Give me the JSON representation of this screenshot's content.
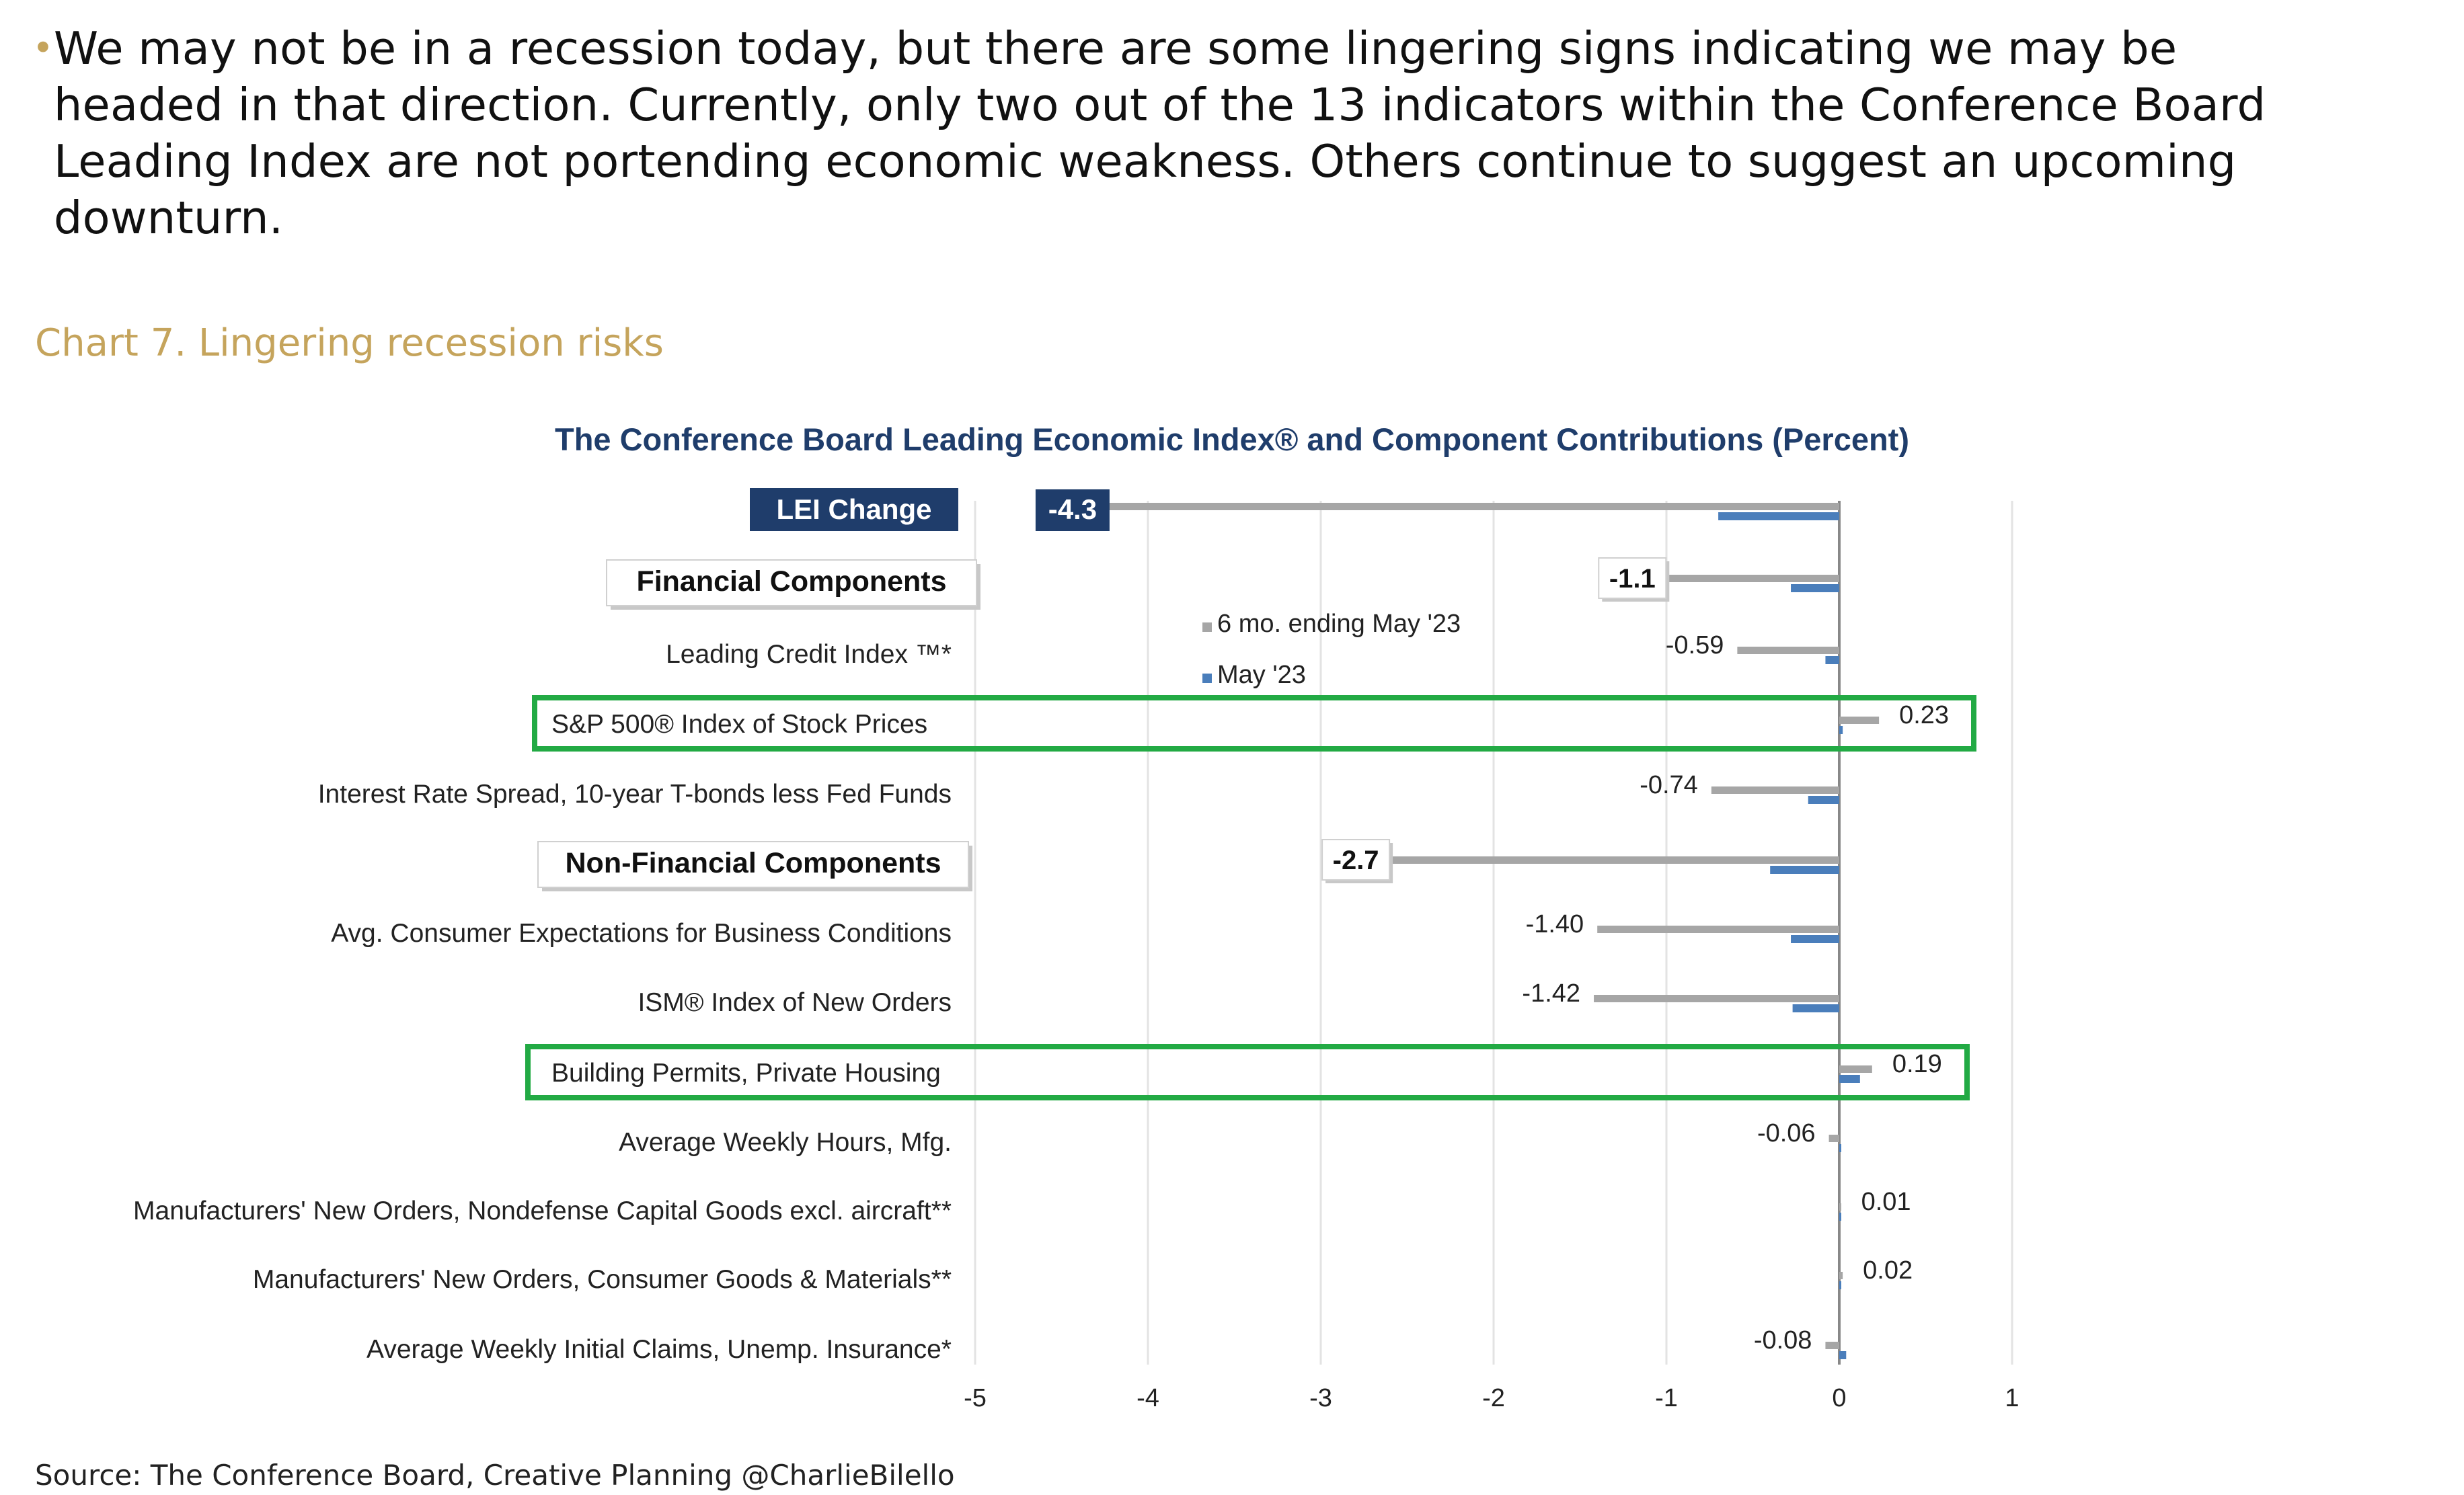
{
  "bullet": {
    "text": "We may not be in a recession today, but there are some lingering signs indicating we may be headed in that direction. Currently, only two out of the 13 indicators within the Conference Board Leading Index are not portending economic weakness. Others continue to suggest an upcoming downturn."
  },
  "caption": "Chart 7. Lingering recession risks",
  "source": "Source: The Conference Board, Creative Planning @CharlieBilello",
  "colors": {
    "six_month": "#a6a6a6",
    "may": "#4a7ebb",
    "title": "#1f3d6b",
    "highlight": "#22aa44",
    "caption": "#c5a45c"
  },
  "chart_data": {
    "type": "bar",
    "orientation": "horizontal",
    "title": "The Conference Board Leading Economic Index® and Component Contributions (Percent)",
    "xlim": [
      -5,
      1
    ],
    "xticks": [
      "-5",
      "-4",
      "-3",
      "-2",
      "-1",
      "0",
      "1"
    ],
    "grid": true,
    "legend": {
      "placement": "center-top",
      "entries": [
        "6 mo. ending May '23",
        "May '23"
      ]
    },
    "series": [
      {
        "name": "6 mo. ending May '23",
        "color": "#a6a6a6"
      },
      {
        "name": "May '23",
        "color": "#4a7ebb"
      }
    ],
    "rows": [
      {
        "label": "LEI Change",
        "kind": "group",
        "six": -4.3,
        "may": -0.7,
        "value_label": "-4.3",
        "label_style": "dark-box",
        "value_style": "dark-box"
      },
      {
        "label": "Financial Components",
        "kind": "group",
        "six": -1.1,
        "may": -0.28,
        "value_label": "-1.1",
        "label_style": "box",
        "value_style": "box"
      },
      {
        "label": "Leading Credit Index ™*",
        "kind": "item",
        "six": -0.59,
        "may": -0.08,
        "value_label": "-0.59"
      },
      {
        "label": "S&P 500® Index of Stock Prices",
        "kind": "item",
        "six": 0.23,
        "may": 0.02,
        "value_label": "0.23",
        "highlight": true
      },
      {
        "label": "Interest Rate Spread, 10-year T-bonds less Fed Funds",
        "kind": "item",
        "six": -0.74,
        "may": -0.18,
        "value_label": "-0.74"
      },
      {
        "label": "Non-Financial Components",
        "kind": "group",
        "six": -2.7,
        "may": -0.4,
        "value_label": "-2.7",
        "label_style": "box",
        "value_style": "box"
      },
      {
        "label": "Avg. Consumer Expectations for Business Conditions",
        "kind": "item",
        "six": -1.4,
        "may": -0.28,
        "value_label": "-1.40"
      },
      {
        "label": "ISM® Index of New Orders",
        "kind": "item",
        "six": -1.42,
        "may": -0.27,
        "value_label": "-1.42"
      },
      {
        "label": "Building Permits, Private Housing",
        "kind": "item",
        "six": 0.19,
        "may": 0.12,
        "value_label": "0.19",
        "highlight": true
      },
      {
        "label": "Average Weekly Hours, Mfg.",
        "kind": "item",
        "six": -0.06,
        "may": 0.0,
        "value_label": "-0.06"
      },
      {
        "label": "Manufacturers' New Orders, Nondefense Capital Goods excl. aircraft**",
        "kind": "item",
        "six": 0.01,
        "may": 0.0,
        "value_label": "0.01"
      },
      {
        "label": "Manufacturers' New Orders, Consumer Goods & Materials**",
        "kind": "item",
        "six": 0.02,
        "may": 0.0,
        "value_label": "0.02"
      },
      {
        "label": "Average Weekly Initial Claims, Unemp. Insurance*",
        "kind": "item",
        "six": -0.08,
        "may": 0.04,
        "value_label": "-0.08"
      }
    ]
  }
}
